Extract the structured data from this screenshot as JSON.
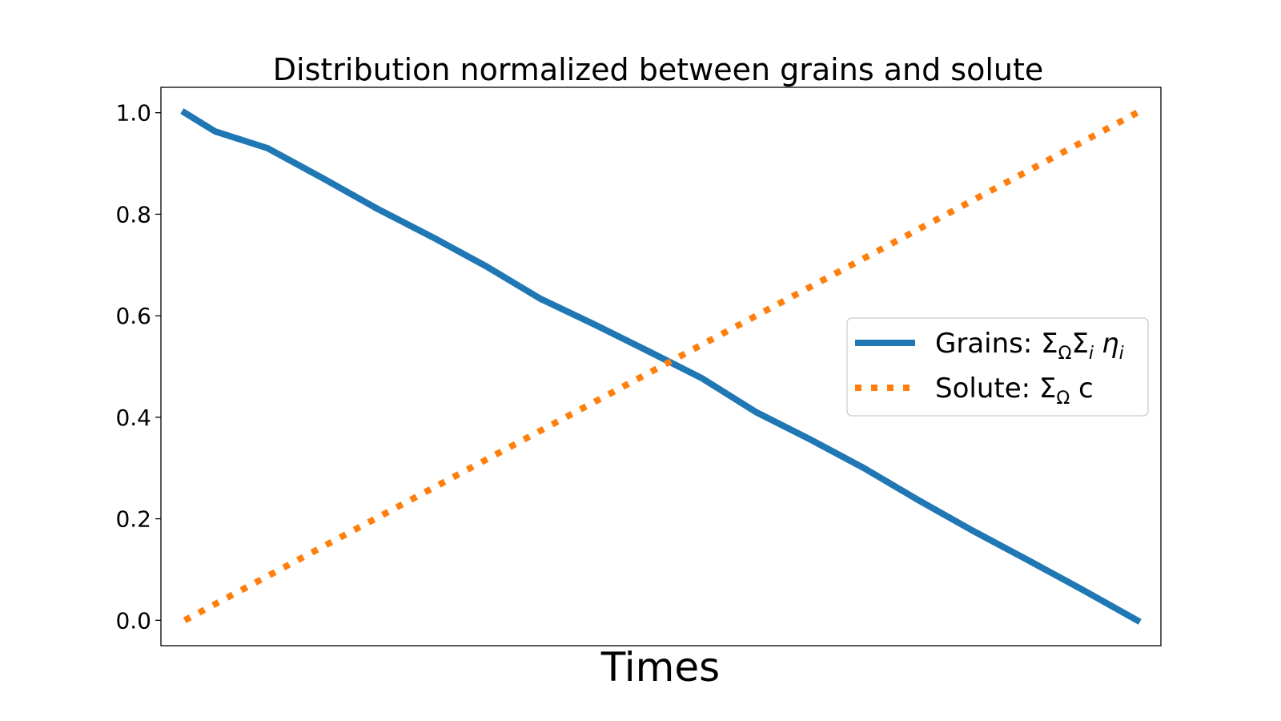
{
  "chart_data": {
    "type": "line",
    "title": "Distribution normalized between grains and solute",
    "xlabel": "Times",
    "ylabel": "",
    "xticks_visible": false,
    "xlim": [
      -0.025,
      1.025
    ],
    "ylim": [
      -0.05,
      1.05
    ],
    "yticks": [
      0.0,
      0.2,
      0.4,
      0.6,
      0.8,
      1.0
    ],
    "ytick_labels": [
      "0.0",
      "0.2",
      "0.4",
      "0.6",
      "0.8",
      "1.0"
    ],
    "grid": false,
    "legend_position": "center-right",
    "series": [
      {
        "name": "grains",
        "label_parts": {
          "prefix": "Grains: ",
          "s1": "Σ",
          "s1_sub": "Ω",
          "s2": "Σ",
          "s2_sub": "i",
          "var": "η",
          "var_sub": "i"
        },
        "color": "#1f77b4",
        "style": "solid",
        "x": [
          0.0,
          0.032,
          0.087,
          0.146,
          0.203,
          0.26,
          0.317,
          0.373,
          0.43,
          0.487,
          0.543,
          0.6,
          0.656,
          0.713,
          0.77,
          0.827,
          0.884,
          0.94,
          1.0
        ],
        "y": [
          1.0,
          0.963,
          0.93,
          0.87,
          0.81,
          0.755,
          0.697,
          0.634,
          0.583,
          0.53,
          0.477,
          0.41,
          0.357,
          0.3,
          0.237,
          0.177,
          0.12,
          0.063,
          0.0
        ]
      },
      {
        "name": "solute",
        "label_parts": {
          "prefix": "Solute: ",
          "s1": "Σ",
          "s1_sub": "Ω",
          "suffix": " c"
        },
        "color": "#ff7f0e",
        "style": "dotted",
        "x": [
          0.0,
          1.0
        ],
        "y": [
          0.0,
          1.0
        ]
      }
    ]
  }
}
